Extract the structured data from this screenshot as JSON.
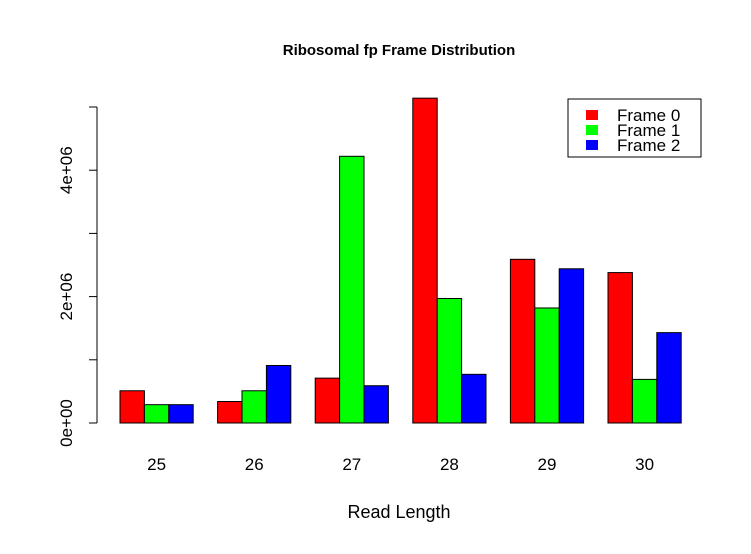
{
  "chart_data": {
    "type": "bar",
    "title": "Ribosomal fp Frame Distribution",
    "xlabel": "Read Length",
    "ylabel": "",
    "categories": [
      "25",
      "26",
      "27",
      "28",
      "29",
      "30"
    ],
    "series": [
      {
        "name": "Frame 0",
        "color": "#ff0000",
        "values": [
          510000,
          340000,
          710000,
          5140000,
          2590000,
          2380000
        ]
      },
      {
        "name": "Frame 1",
        "color": "#00ff00",
        "values": [
          290000,
          510000,
          4220000,
          1970000,
          1820000,
          690000
        ]
      },
      {
        "name": "Frame 2",
        "color": "#0000ff",
        "values": [
          290000,
          910000,
          590000,
          770000,
          2440000,
          1430000
        ]
      }
    ],
    "ylim": [
      0,
      5000000
    ],
    "y_ticks": [
      0,
      1000000,
      2000000,
      3000000,
      4000000,
      5000000
    ],
    "y_tick_labels": [
      "0e+00",
      "",
      "2e+06",
      "",
      "4e+06",
      ""
    ],
    "grid": false,
    "legend_position": "top-right"
  }
}
